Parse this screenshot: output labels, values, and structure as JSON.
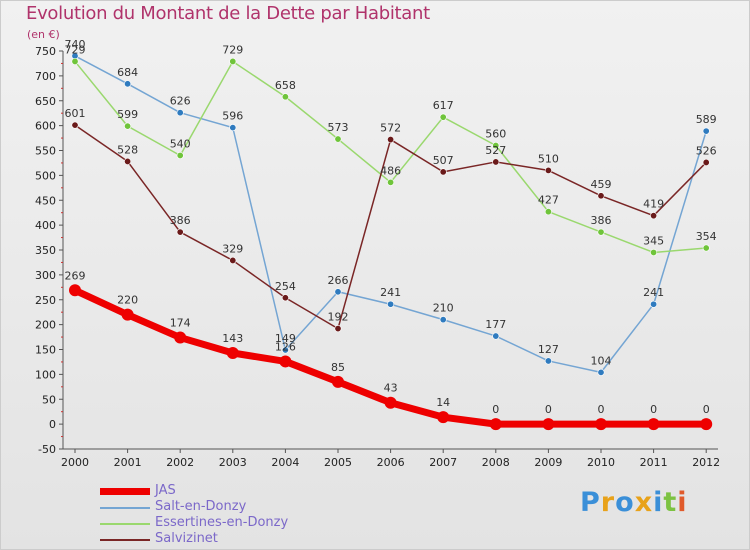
{
  "title": "Evolution du Montant de la Dette par Habitant",
  "unit_label": "(en €)",
  "logo": {
    "text": "Proxiti",
    "letters": [
      {
        "ch": "P",
        "color": "#3a8fd8"
      },
      {
        "ch": "r",
        "color": "#e8a21a"
      },
      {
        "ch": "o",
        "color": "#3a8fd8"
      },
      {
        "ch": "x",
        "color": "#e8a21a"
      },
      {
        "ch": "i",
        "color": "#3a8fd8"
      },
      {
        "ch": "t",
        "color": "#7cc242"
      },
      {
        "ch": "i",
        "color": "#e05a2b"
      }
    ]
  },
  "chart_data": {
    "type": "line",
    "title": "Evolution du Montant de la Dette par Habitant",
    "ylabel": "(en €)",
    "xlabel": "",
    "x": [
      "2000",
      "2001",
      "2002",
      "2003",
      "2004",
      "2005",
      "2006",
      "2007",
      "2008",
      "2009",
      "2010",
      "2011",
      "2012"
    ],
    "ylim": [
      -50,
      750
    ],
    "yticks": [
      -50,
      0,
      50,
      100,
      150,
      200,
      250,
      300,
      350,
      400,
      450,
      500,
      550,
      600,
      650,
      700,
      750
    ],
    "grid": false,
    "legend_position": "bottom-left",
    "series": [
      {
        "name": "JAS",
        "color": "#ee0000",
        "dot_color": "#ee0000",
        "width": 7,
        "values": [
          269,
          220,
          174,
          143,
          126,
          85,
          43,
          14,
          0,
          0,
          0,
          0,
          0
        ],
        "labels": [
          "269",
          "220",
          "174",
          "143",
          "",
          "85",
          "43",
          "14",
          "0",
          "0",
          "0",
          "0",
          "0"
        ]
      },
      {
        "name": "Salt-en-Donzy",
        "color": "#74a5d3",
        "dot_color": "#2f7bbf",
        "width": 1.5,
        "values": [
          740,
          684,
          626,
          596,
          149,
          266,
          241,
          210,
          177,
          127,
          104,
          241,
          589
        ],
        "labels": [
          "740",
          "684",
          "626",
          "596",
          "149",
          "266",
          "241",
          "210",
          "177",
          "127",
          "104",
          "241",
          "589"
        ]
      },
      {
        "name": "Essertines-en-Donzy",
        "color": "#9ad86e",
        "dot_color": "#6fc43a",
        "width": 1.5,
        "values": [
          729,
          599,
          540,
          729,
          658,
          573,
          486,
          617,
          560,
          427,
          386,
          345,
          354
        ],
        "labels": [
          "729",
          "599",
          "540",
          "729",
          "658",
          "573",
          "486",
          "617",
          "560",
          "427",
          "386",
          "345",
          "354"
        ]
      },
      {
        "name": "Salvizinet",
        "color": "#7a2626",
        "dot_color": "#6a1a1a",
        "width": 1.5,
        "values": [
          601,
          528,
          386,
          329,
          254,
          192,
          572,
          507,
          527,
          510,
          459,
          419,
          526
        ],
        "labels": [
          "601",
          "528",
          "386",
          "329",
          "254",
          "192",
          "572",
          "507",
          "527",
          "510",
          "459",
          "419",
          "526"
        ]
      }
    ],
    "extra_label_2004_jas": "126"
  }
}
